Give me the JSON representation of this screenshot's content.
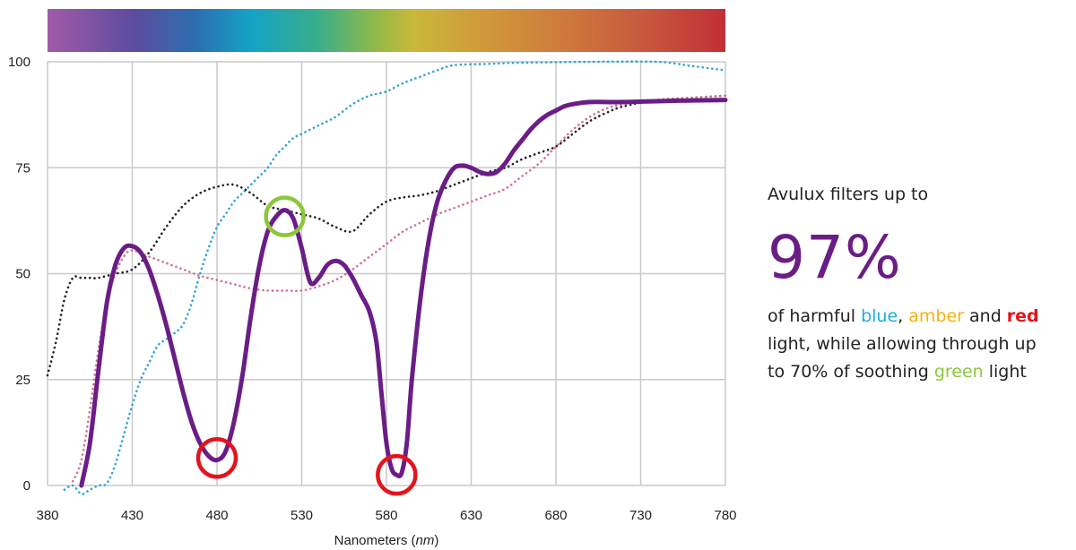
{
  "panel": {
    "intro": "Avulux filters up to",
    "big": "97%",
    "line1_pre": "of harmful ",
    "blue": "blue",
    "sep1": ", ",
    "amber": "amber",
    "and": " and ",
    "red": "red",
    "line2": "light, while allowing through up",
    "line3_pre": "to 70% of soothing ",
    "green": "green",
    "line3_post": " light"
  },
  "colors": {
    "avulux": "#6b1d86",
    "blue_word": "#21a9dc",
    "amber_word": "#f6b10b",
    "red_word": "#e3141c",
    "green_word": "#8cc63f",
    "marker_red": "#e3141c",
    "marker_green": "#8cc63f"
  },
  "chart_data": {
    "type": "line",
    "xlabel": "Nanometers (nm)",
    "xlim": [
      380,
      780
    ],
    "ylim": [
      0,
      100
    ],
    "xticks": [
      380,
      430,
      480,
      530,
      580,
      630,
      680,
      730,
      780
    ],
    "yticks": [
      0,
      25,
      50,
      75,
      100
    ],
    "grid": true,
    "spectrum_bar": true,
    "series": [
      {
        "style": "solid",
        "color": "#6b1d86",
        "points": [
          [
            400,
            0
          ],
          [
            405,
            10
          ],
          [
            410,
            27
          ],
          [
            415,
            43
          ],
          [
            420,
            52
          ],
          [
            425,
            56
          ],
          [
            430,
            56.5
          ],
          [
            435,
            55
          ],
          [
            440,
            51
          ],
          [
            445,
            45
          ],
          [
            450,
            38
          ],
          [
            455,
            30
          ],
          [
            460,
            22
          ],
          [
            465,
            15
          ],
          [
            470,
            10
          ],
          [
            475,
            7
          ],
          [
            480,
            6
          ],
          [
            485,
            8
          ],
          [
            490,
            15
          ],
          [
            495,
            26
          ],
          [
            500,
            40
          ],
          [
            505,
            52
          ],
          [
            510,
            60
          ],
          [
            515,
            63.5
          ],
          [
            520,
            65
          ],
          [
            525,
            63
          ],
          [
            530,
            56
          ],
          [
            535,
            48
          ],
          [
            540,
            49
          ],
          [
            545,
            52
          ],
          [
            550,
            53
          ],
          [
            555,
            52
          ],
          [
            560,
            49
          ],
          [
            565,
            45
          ],
          [
            570,
            41
          ],
          [
            574,
            34
          ],
          [
            577,
            22
          ],
          [
            580,
            10
          ],
          [
            583,
            4
          ],
          [
            586,
            2.5
          ],
          [
            589,
            3
          ],
          [
            592,
            10
          ],
          [
            595,
            25
          ],
          [
            600,
            44
          ],
          [
            605,
            58
          ],
          [
            610,
            67
          ],
          [
            615,
            72
          ],
          [
            620,
            75
          ],
          [
            625,
            75.5
          ],
          [
            630,
            75
          ],
          [
            635,
            74
          ],
          [
            640,
            73.5
          ],
          [
            645,
            74
          ],
          [
            650,
            76
          ],
          [
            655,
            79
          ],
          [
            660,
            81.5
          ],
          [
            665,
            84
          ],
          [
            670,
            86
          ],
          [
            675,
            87.5
          ],
          [
            680,
            88.5
          ],
          [
            685,
            89.5
          ],
          [
            690,
            90
          ],
          [
            700,
            90.5
          ],
          [
            720,
            90.5
          ],
          [
            750,
            90.8
          ],
          [
            780,
            91
          ]
        ]
      },
      {
        "style": "dotted",
        "color": "#2fa3d6",
        "points": [
          [
            390,
            -1
          ],
          [
            395,
            0
          ],
          [
            400,
            -2
          ],
          [
            405,
            -1
          ],
          [
            410,
            0
          ],
          [
            415,
            0.5
          ],
          [
            420,
            5
          ],
          [
            425,
            12
          ],
          [
            430,
            19
          ],
          [
            435,
            25
          ],
          [
            440,
            29
          ],
          [
            445,
            33
          ],
          [
            450,
            34.5
          ],
          [
            455,
            36
          ],
          [
            460,
            38
          ],
          [
            465,
            43
          ],
          [
            470,
            50
          ],
          [
            475,
            56
          ],
          [
            480,
            61
          ],
          [
            485,
            64
          ],
          [
            490,
            67
          ],
          [
            495,
            69
          ],
          [
            500,
            71
          ],
          [
            505,
            73
          ],
          [
            510,
            75
          ],
          [
            515,
            78
          ],
          [
            520,
            80
          ],
          [
            525,
            82
          ],
          [
            530,
            83
          ],
          [
            540,
            85
          ],
          [
            550,
            87
          ],
          [
            560,
            90
          ],
          [
            570,
            92
          ],
          [
            580,
            93
          ],
          [
            590,
            95
          ],
          [
            600,
            96.5
          ],
          [
            610,
            98
          ],
          [
            620,
            99.2
          ],
          [
            640,
            99.5
          ],
          [
            660,
            99.8
          ],
          [
            700,
            100
          ],
          [
            740,
            100
          ],
          [
            760,
            99
          ],
          [
            780,
            98
          ]
        ]
      },
      {
        "style": "dotted",
        "color": "#222222",
        "points": [
          [
            380,
            26
          ],
          [
            385,
            34
          ],
          [
            390,
            44
          ],
          [
            395,
            49
          ],
          [
            400,
            49
          ],
          [
            405,
            49
          ],
          [
            410,
            49
          ],
          [
            420,
            50
          ],
          [
            430,
            51
          ],
          [
            440,
            55
          ],
          [
            450,
            61
          ],
          [
            460,
            66
          ],
          [
            470,
            69
          ],
          [
            480,
            70.5
          ],
          [
            490,
            71
          ],
          [
            500,
            69
          ],
          [
            510,
            66
          ],
          [
            520,
            65
          ],
          [
            530,
            64
          ],
          [
            540,
            63
          ],
          [
            550,
            61
          ],
          [
            560,
            60
          ],
          [
            570,
            64
          ],
          [
            580,
            67
          ],
          [
            590,
            68
          ],
          [
            600,
            68.5
          ],
          [
            610,
            69.5
          ],
          [
            620,
            71
          ],
          [
            630,
            72.5
          ],
          [
            640,
            74
          ],
          [
            650,
            75
          ],
          [
            660,
            77
          ],
          [
            670,
            78.5
          ],
          [
            680,
            80
          ],
          [
            690,
            83
          ],
          [
            700,
            86
          ],
          [
            710,
            88
          ],
          [
            720,
            89.5
          ],
          [
            740,
            91
          ],
          [
            760,
            91.5
          ],
          [
            780,
            92
          ]
        ]
      },
      {
        "style": "dotted",
        "color": "#d46f93",
        "points": [
          [
            395,
            1
          ],
          [
            400,
            6
          ],
          [
            405,
            18
          ],
          [
            410,
            32
          ],
          [
            415,
            43
          ],
          [
            420,
            50
          ],
          [
            425,
            54
          ],
          [
            430,
            55.5
          ],
          [
            440,
            54
          ],
          [
            450,
            52.5
          ],
          [
            460,
            51
          ],
          [
            470,
            49.5
          ],
          [
            480,
            48.5
          ],
          [
            490,
            47.5
          ],
          [
            500,
            46.5
          ],
          [
            510,
            46
          ],
          [
            520,
            46
          ],
          [
            530,
            46
          ],
          [
            540,
            47
          ],
          [
            550,
            48.5
          ],
          [
            560,
            51
          ],
          [
            570,
            54
          ],
          [
            580,
            57
          ],
          [
            590,
            60
          ],
          [
            600,
            62
          ],
          [
            610,
            64
          ],
          [
            620,
            65.5
          ],
          [
            630,
            67
          ],
          [
            640,
            68.5
          ],
          [
            650,
            70
          ],
          [
            660,
            73
          ],
          [
            670,
            76
          ],
          [
            680,
            80
          ],
          [
            690,
            84
          ],
          [
            700,
            87
          ],
          [
            710,
            89
          ],
          [
            720,
            90
          ],
          [
            740,
            91
          ],
          [
            760,
            91.5
          ],
          [
            780,
            92
          ]
        ]
      }
    ],
    "markers": [
      {
        "x": 480,
        "y": 6.5,
        "color": "#e3141c"
      },
      {
        "x": 586,
        "y": 2.5,
        "color": "#e3141c"
      },
      {
        "x": 520,
        "y": 63.5,
        "color": "#8cc63f"
      }
    ]
  }
}
